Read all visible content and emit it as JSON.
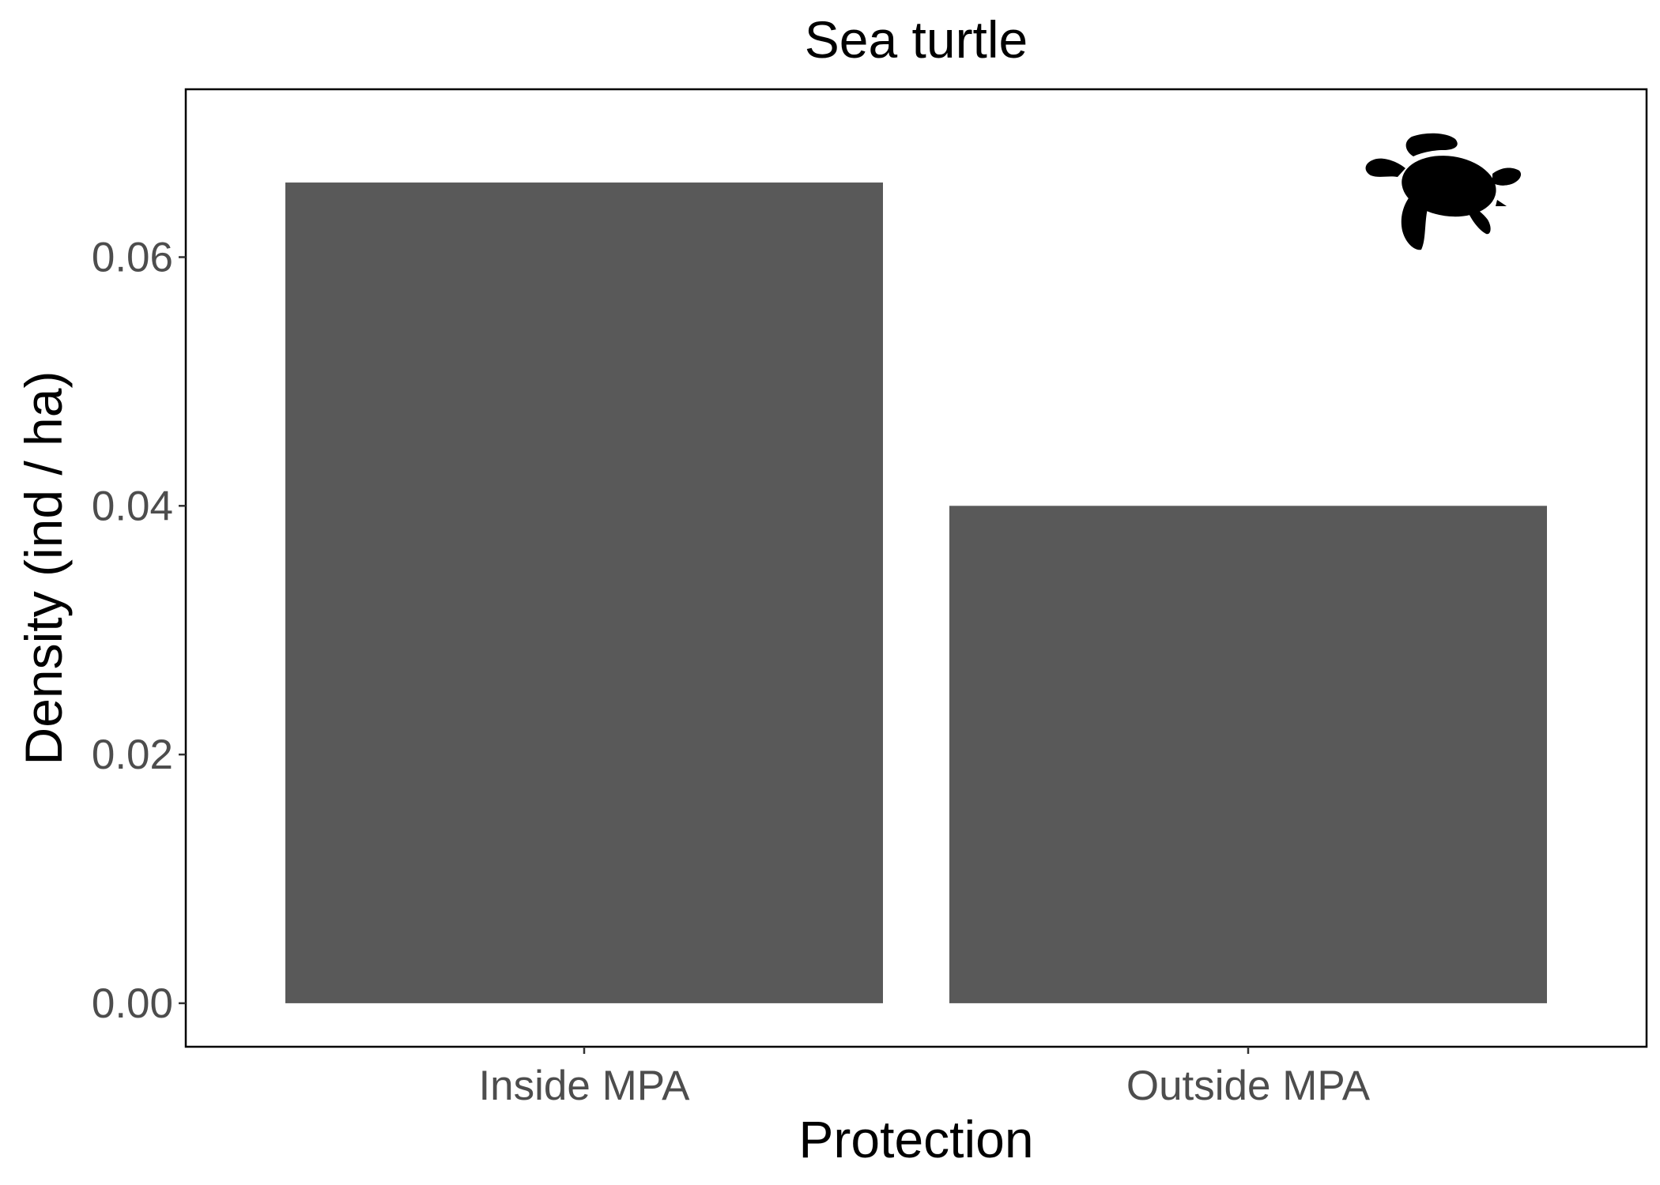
{
  "chart_data": {
    "type": "bar",
    "title": "Sea turtle",
    "xlabel": "Protection",
    "ylabel": "Density (ind / ha)",
    "categories": [
      "Inside MPA",
      "Outside MPA"
    ],
    "values": [
      0.066,
      0.04
    ],
    "ylim": [
      -0.0035,
      0.0735
    ],
    "yticks": [
      "0.00",
      "0.02",
      "0.04",
      "0.06"
    ],
    "grid": false,
    "legend": "none",
    "bar_color": "#595959",
    "icon": "sea-turtle-icon"
  }
}
